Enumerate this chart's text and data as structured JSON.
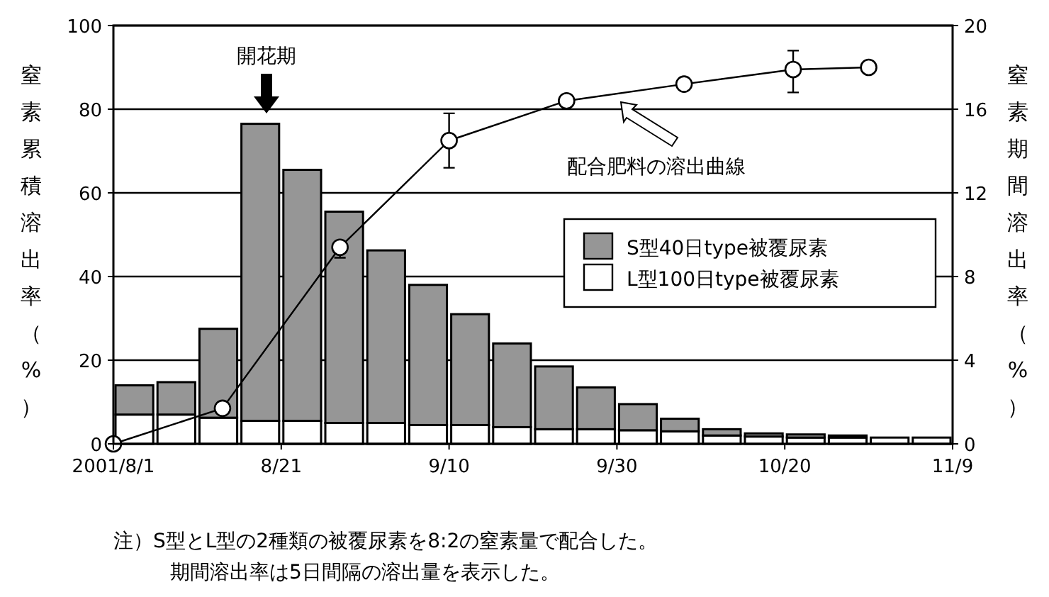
{
  "chart_data": {
    "type": "bar",
    "stacked": true,
    "x": [
      "2001-08-03T12:00",
      "2001-08-08T12:00",
      "2001-08-13T12:00",
      "2001-08-18T12:00",
      "2001-08-23T12:00",
      "2001-08-28T12:00",
      "2001-09-02T12:00",
      "2001-09-07T12:00",
      "2001-09-12T12:00",
      "2001-09-17T12:00",
      "2001-09-22T12:00",
      "2001-09-27T12:00",
      "2001-10-02T12:00",
      "2001-10-07T12:00",
      "2001-10-12T12:00",
      "2001-10-17T12:00",
      "2001-10-22T12:00",
      "2001-10-27T12:00",
      "2001-11-01T12:00",
      "2001-11-06T12:00"
    ],
    "series": [
      {
        "name": "L型100日type被覆尿素",
        "color": "#ffffff",
        "axis": "y2",
        "values": [
          1.4,
          1.4,
          1.25,
          1.1,
          1.1,
          1.0,
          1.0,
          0.9,
          0.9,
          0.8,
          0.7,
          0.7,
          0.65,
          0.6,
          0.4,
          0.35,
          0.3,
          0.3,
          0.3,
          0.3
        ]
      },
      {
        "name": "S型40日type被覆尿素",
        "color": "#969696",
        "axis": "y2",
        "values": [
          1.4,
          1.55,
          4.25,
          14.2,
          12.0,
          10.1,
          8.25,
          6.7,
          5.3,
          4.0,
          3.0,
          2.0,
          1.25,
          0.6,
          0.3,
          0.15,
          0.15,
          0.1,
          0,
          0
        ]
      },
      {
        "type": "line",
        "color": "#000000",
        "marker": "circle",
        "x": [
          "2001-08-01",
          "2001-08-14",
          "2001-08-28",
          "2001-09-10",
          "2001-09-24",
          "2001-10-08",
          "2001-10-21",
          "2001-10-30"
        ],
        "values": [
          0,
          8.5,
          47,
          72.5,
          82,
          86,
          89.5,
          90
        ],
        "errors": [
          null,
          null,
          [
            44.5,
            47.5
          ],
          [
            66,
            79
          ],
          null,
          null,
          [
            84,
            94
          ],
          null
        ]
      }
    ],
    "xlim": [
      "2001-08-01",
      "2001-11-09"
    ],
    "xticks": [
      {
        "value": "2001-08-01",
        "label": "2001/8/1"
      },
      {
        "value": "2001-08-21",
        "label": "8/21"
      },
      {
        "value": "2001-09-10",
        "label": "9/10"
      },
      {
        "value": "2001-09-30",
        "label": "9/30"
      },
      {
        "value": "2001-10-20",
        "label": "10/20"
      },
      {
        "value": "2001-11-09",
        "label": "11/9"
      }
    ],
    "ylim": [
      0,
      100
    ],
    "yticks": [
      0,
      20,
      40,
      60,
      80,
      100
    ],
    "y2lim": [
      0,
      20
    ],
    "y2ticks": [
      0,
      4,
      8,
      12,
      16,
      20
    ],
    "ylabel": "窒素累積溶出率（%）",
    "y2label": "窒素期間溶出率（%）",
    "grid": "y",
    "legend": "right",
    "annotations": [
      "開花期",
      "配合肥料の溶出曲線",
      "注）S型とL型の2種類の被覆尿素を8:2の窒素量で配合した。",
      "期間溶出率は5日間隔の溶出量を表示した。"
    ]
  }
}
